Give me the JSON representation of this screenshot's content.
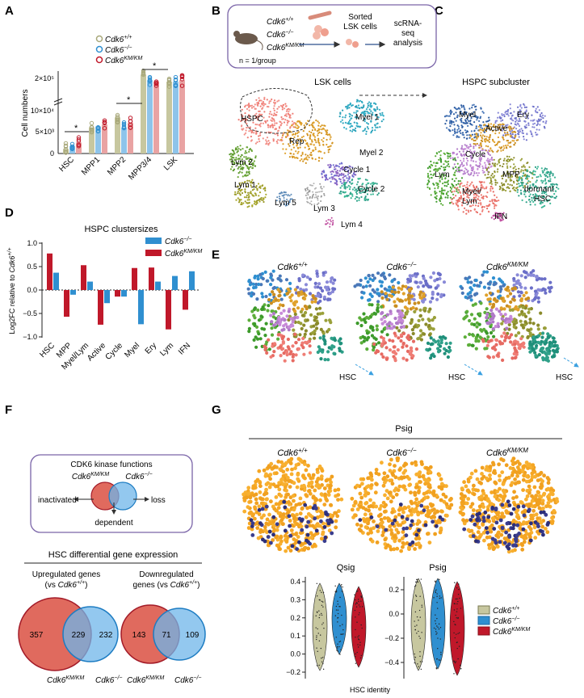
{
  "colors": {
    "wt": "#a8a87a",
    "ko": "#2f8fd0",
    "km": "#c0182a",
    "wt_fill": "#c7c79f",
    "ko_fill": "#8ec4ea",
    "km_fill": "#e9a3a3",
    "orange": "#f5a623",
    "navy": "#2d2f7a",
    "venn_red": "#e06a5e",
    "venn_blue": "#6fb5ea",
    "box_border": "#7a64a8"
  },
  "panels": {
    "a": "A",
    "b": "B",
    "c": "C",
    "d": "D",
    "e": "E",
    "f": "F",
    "g": "G"
  },
  "geno": {
    "wt": "Cdk6+/+",
    "ko": "Cdk6−/−",
    "km": "Cdk6KM/KM"
  },
  "panel_a": {
    "ylabel": "Cell numbers",
    "ticks": [
      "2×10⁵",
      "10×10⁴",
      "5×10³",
      "0"
    ],
    "star": "*",
    "chart_data": {
      "type": "bar",
      "title": "",
      "ylabel": "Cell numbers",
      "categories": [
        "HSC",
        "MPP1",
        "MPP2",
        "MPP3/4",
        "LSK"
      ],
      "series": [
        {
          "name": "Cdk6+/+",
          "values": [
            900,
            5200,
            7200,
            185000,
            160000
          ]
        },
        {
          "name": "Cdk6−/−",
          "values": [
            1500,
            5400,
            5200,
            165000,
            160000
          ]
        },
        {
          "name": "Cdk6KM/KM",
          "values": [
            2200,
            5800,
            6100,
            160000,
            165000
          ]
        }
      ],
      "significance": [
        {
          "between": "HSC",
          "label": "*"
        },
        {
          "between": "MPP2",
          "label": "*"
        },
        {
          "between": "MPP3/4",
          "label": "*"
        }
      ]
    }
  },
  "panel_b": {
    "schematic": {
      "n_label": "n = 1/group",
      "sorted": "Sorted\nLSK cells",
      "sorted1": "Sorted",
      "sorted2": "LSK cells",
      "scrna1": "scRNA-",
      "scrna2": "seq",
      "scrna3": "analysis"
    },
    "title": "LSK cells",
    "clusters": [
      "HSPC",
      "Myel 1",
      "Rep",
      "Myel 2",
      "Lym 2",
      "Cycle 1",
      "Lym 1",
      "Cycle 2",
      "Lym 5",
      "Lym 3",
      "Lym 4"
    ]
  },
  "panel_c": {
    "title": "HSPC subcluster",
    "clusters": [
      "Myel",
      "Ery",
      "Active",
      "Cycle",
      "Lym",
      "MPP",
      "Myel/",
      "Lym",
      "dormant",
      "HSC",
      "IFN"
    ]
  },
  "panel_d": {
    "title": "HSPC clustersizes",
    "ylabel": "Log2FC relative to Cdk6+/+",
    "ticks": [
      "1.0",
      "0.5",
      "0.0",
      "−0.5",
      "−1.0"
    ],
    "chart_data": {
      "type": "bar",
      "title": "HSPC clustersizes",
      "ylabel": "Log2FC relative to Cdk6+/+",
      "ylim": [
        -1.0,
        1.0
      ],
      "categories": [
        "HSC",
        "MPP",
        "Myel/Lym",
        "Active",
        "Cycle",
        "Myel",
        "Ery",
        "Lym",
        "IFN"
      ],
      "series": [
        {
          "name": "Cdk6KM/KM",
          "values": [
            0.78,
            -0.57,
            0.53,
            -0.74,
            -0.14,
            0.47,
            0.48,
            -0.84,
            -0.42
          ]
        },
        {
          "name": "Cdk6−/−",
          "values": [
            0.37,
            -0.1,
            0.18,
            -0.28,
            -0.14,
            -0.73,
            0.18,
            0.3,
            0.4
          ]
        }
      ]
    }
  },
  "panel_e": {
    "hsc": "HSC"
  },
  "panel_f": {
    "box_title": "CDK6 kinase functions",
    "inactivated": "inactivated",
    "loss": "loss",
    "dependent": "dependent",
    "diff_title": "HSC differential gene expression",
    "up_label1": "Upregulated genes",
    "up_label2": "(vs Cdk6+/+)",
    "down_label1": "Downregulated",
    "down_label2": "genes (vs Cdk6+/+)",
    "venn_up": [
      357,
      229,
      232
    ],
    "venn_down": [
      143,
      71,
      109
    ]
  },
  "panel_g": {
    "psig_title": "Psig",
    "violin_titles": [
      "Qsig",
      "Psig"
    ],
    "violin_xlabel": "HSC identity",
    "qsig_ticks": [
      "0.4",
      "0.3",
      "0.2",
      "0.1",
      "0.0",
      "−0.2"
    ],
    "psig_ticks": [
      "0.2",
      "0.0",
      "−0.2",
      "−0.4"
    ]
  }
}
